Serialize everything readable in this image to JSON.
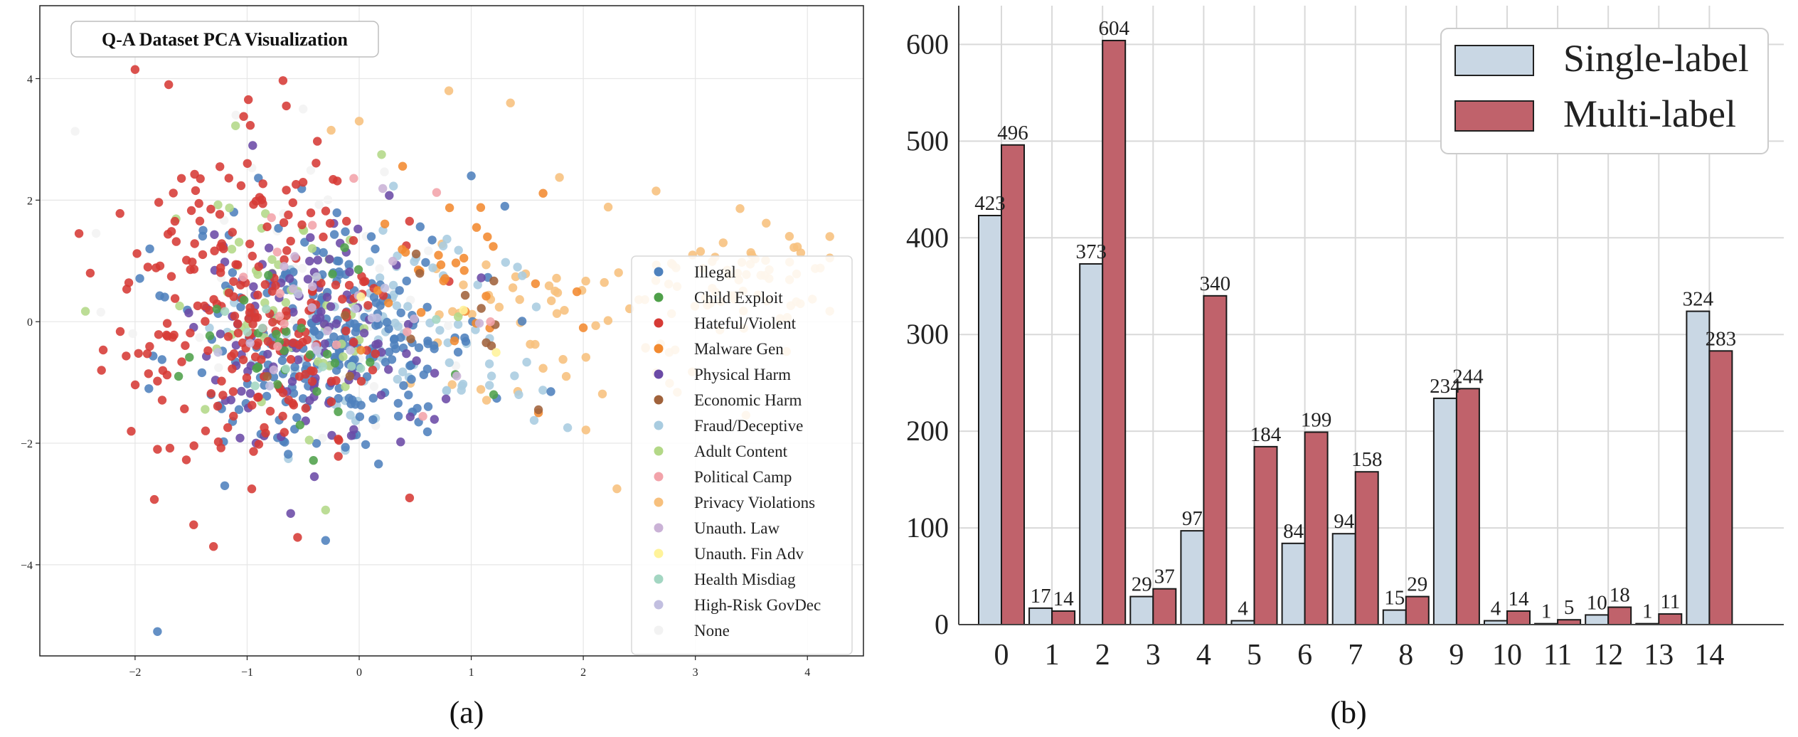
{
  "colors": {
    "Illegal": "#4e81bd",
    "Child Exploit": "#4fa04a",
    "Hateful/Violent": "#d63a35",
    "Malware Gen": "#f28a30",
    "Physical Harm": "#6b4aa6",
    "Economic Harm": "#a0623b",
    "Fraud/Deceptive": "#a9cce0",
    "Adult Content": "#b3d887",
    "Political Camp": "#f2a3aa",
    "Privacy Violations": "#f7c07d",
    "Unauth. Law": "#cab2d6",
    "Unauth. Fin Adv": "#fff39a",
    "Health Misdiag": "#a3d6c2",
    "High-Risk GovDec": "#c2bfe0",
    "None": "#f2f2f2",
    "single_bar": "#c9d7e4",
    "multi_bar": "#c0626b"
  },
  "chart_data": [
    {
      "type": "scatter",
      "title": "Q-A Dataset PCA Visualization",
      "caption": "(a)",
      "xlim": [
        -2.85,
        4.5
      ],
      "ylim": [
        -5.5,
        5.2
      ],
      "xticks": [
        -2,
        -1,
        0,
        1,
        2,
        3,
        4
      ],
      "yticks": [
        -4,
        -2,
        0,
        2,
        4
      ],
      "xtick_labels": [
        "−2",
        "−1",
        "0",
        "1",
        "2",
        "3",
        "4"
      ],
      "ytick_labels": [
        "−4",
        "−2",
        "0",
        "2",
        "4"
      ],
      "legend_position": "center-right",
      "legend": [
        "Illegal",
        "Child Exploit",
        "Hateful/Violent",
        "Malware Gen",
        "Physical Harm",
        "Economic Harm",
        "Fraud/Deceptive",
        "Adult Content",
        "Political Camp",
        "Privacy Violations",
        "Unauth. Law",
        "Unauth. Fin Adv",
        "Health Misdiag",
        "High-Risk GovDec",
        "None"
      ],
      "series": [
        {
          "name": "Illegal",
          "clusters": [
            {
              "cx": -0.2,
              "cy": -0.3,
              "sx": 0.65,
              "sy": 0.95,
              "n": 240
            }
          ],
          "points": [
            [
              -1.8,
              -5.1
            ],
            [
              1.0,
              2.4
            ],
            [
              1.3,
              1.9
            ],
            [
              -0.3,
              -3.6
            ],
            [
              -1.2,
              -2.7
            ]
          ]
        },
        {
          "name": "Child Exploit",
          "clusters": [
            {
              "cx": -0.6,
              "cy": -0.4,
              "sx": 0.5,
              "sy": 0.7,
              "n": 28
            }
          ],
          "points": [
            [
              1.2,
              -1.2
            ]
          ]
        },
        {
          "name": "Hateful/Violent",
          "clusters": [
            {
              "cx": -0.9,
              "cy": 0.3,
              "sx": 0.6,
              "sy": 1.3,
              "n": 240
            }
          ],
          "points": [
            [
              -2.0,
              4.15
            ],
            [
              -1.7,
              3.9
            ],
            [
              -0.65,
              3.55
            ],
            [
              -2.5,
              1.45
            ],
            [
              -2.3,
              -0.8
            ],
            [
              -1.3,
              -3.7
            ],
            [
              -0.55,
              -3.55
            ],
            [
              0.45,
              -2.9
            ],
            [
              -1.8,
              -2.1
            ],
            [
              -2.4,
              0.8
            ]
          ]
        },
        {
          "name": "Malware Gen",
          "clusters": [
            {
              "cx": 0.9,
              "cy": 0.6,
              "sx": 0.4,
              "sy": 0.8,
              "n": 30
            }
          ],
          "points": [
            [
              2.0,
              -0.1
            ],
            [
              1.6,
              -1.5
            ]
          ]
        },
        {
          "name": "Physical Harm",
          "clusters": [
            {
              "cx": -0.5,
              "cy": -0.2,
              "sx": 0.55,
              "sy": 0.9,
              "n": 110
            }
          ],
          "points": [
            [
              -0.95,
              2.9
            ],
            [
              -0.4,
              -2.55
            ]
          ]
        },
        {
          "name": "Economic Harm",
          "clusters": [
            {
              "cx": 0.3,
              "cy": -0.1,
              "sx": 0.6,
              "sy": 0.7,
              "n": 12
            }
          ],
          "points": [
            [
              1.6,
              -1.45
            ]
          ]
        },
        {
          "name": "Fraud/Deceptive",
          "clusters": [
            {
              "cx": 0.4,
              "cy": -0.2,
              "sx": 0.7,
              "sy": 0.9,
              "n": 100
            }
          ],
          "points": []
        },
        {
          "name": "Adult Content",
          "clusters": [
            {
              "cx": -0.7,
              "cy": 0.2,
              "sx": 0.6,
              "sy": 1.0,
              "n": 55
            }
          ],
          "points": [
            [
              0.2,
              2.75
            ],
            [
              -0.3,
              -3.1
            ]
          ]
        },
        {
          "name": "Political Camp",
          "clusters": [
            {
              "cx": -0.5,
              "cy": 0.5,
              "sx": 0.6,
              "sy": 0.9,
              "n": 14
            }
          ],
          "points": []
        },
        {
          "name": "Privacy Violations",
          "clusters": [
            {
              "cx": 1.8,
              "cy": 0.1,
              "sx": 0.9,
              "sy": 0.9,
              "n": 60
            },
            {
              "cx": 3.4,
              "cy": 0.7,
              "sx": 0.5,
              "sy": 0.45,
              "n": 65
            }
          ],
          "points": [
            [
              0.8,
              3.8
            ],
            [
              1.35,
              3.6
            ],
            [
              2.65,
              2.15
            ],
            [
              2.3,
              -2.75
            ],
            [
              -0.25,
              3.15
            ],
            [
              0.0,
              3.3
            ]
          ]
        },
        {
          "name": "Unauth. Law",
          "clusters": [
            {
              "cx": -0.2,
              "cy": 0.3,
              "sx": 0.6,
              "sy": 0.8,
              "n": 15
            }
          ],
          "points": []
        },
        {
          "name": "Unauth. Fin Adv",
          "clusters": [
            {
              "cx": 0.2,
              "cy": 0.1,
              "sx": 0.5,
              "sy": 0.6,
              "n": 3
            }
          ],
          "points": []
        },
        {
          "name": "Health Misdiag",
          "clusters": [
            {
              "cx": -0.6,
              "cy": -0.5,
              "sx": 0.5,
              "sy": 0.6,
              "n": 10
            }
          ],
          "points": []
        },
        {
          "name": "High-Risk GovDec",
          "clusters": [
            {
              "cx": -0.4,
              "cy": -0.2,
              "sx": 0.6,
              "sy": 0.7,
              "n": 10
            }
          ],
          "points": []
        },
        {
          "name": "None",
          "clusters": [
            {
              "cx": -0.6,
              "cy": 0.6,
              "sx": 0.8,
              "sy": 1.3,
              "n": 45
            }
          ],
          "points": [
            [
              -1.1,
              3.4
            ],
            [
              -0.5,
              3.5
            ]
          ]
        }
      ]
    },
    {
      "type": "bar",
      "caption": "(b)",
      "categories": [
        "0",
        "1",
        "2",
        "3",
        "4",
        "5",
        "6",
        "7",
        "8",
        "9",
        "10",
        "11",
        "12",
        "13",
        "14"
      ],
      "series": [
        {
          "name": "Single-label",
          "values": [
            423,
            17,
            373,
            29,
            97,
            4,
            84,
            94,
            15,
            234,
            4,
            1,
            10,
            1,
            324
          ]
        },
        {
          "name": "Multi-label",
          "values": [
            496,
            14,
            604,
            37,
            340,
            184,
            199,
            158,
            29,
            244,
            14,
            5,
            18,
            11,
            283
          ]
        }
      ],
      "ylim": [
        0,
        640
      ],
      "yticks": [
        0,
        100,
        200,
        300,
        400,
        500,
        600
      ],
      "grid": true,
      "legend_position": "top-right"
    }
  ]
}
